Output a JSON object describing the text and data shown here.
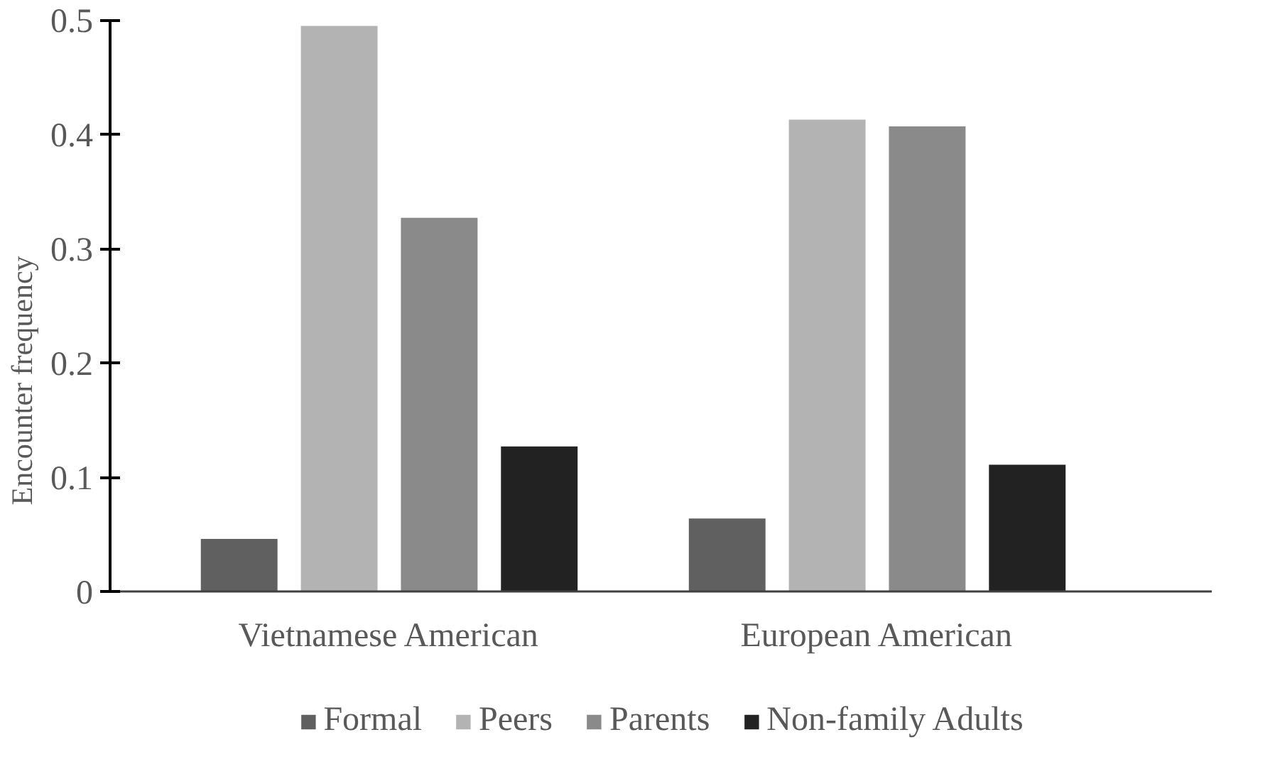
{
  "chart_data": {
    "type": "bar",
    "ylabel": "Encounter frequency",
    "categories": [
      "Vietnamese American",
      "European American"
    ],
    "series": [
      {
        "name": "Formal",
        "color": "#606060",
        "values": [
          0.047,
          0.065
        ]
      },
      {
        "name": "Peers",
        "color": "#b3b3b3",
        "values": [
          0.496,
          0.414
        ]
      },
      {
        "name": "Parents",
        "color": "#8a8a8a",
        "values": [
          0.328,
          0.408
        ]
      },
      {
        "name": "Non-family Adults",
        "color": "#222222",
        "values": [
          0.128,
          0.112
        ]
      }
    ],
    "ylim": [
      0,
      0.5
    ],
    "yticks": [
      0,
      0.1,
      0.2,
      0.3,
      0.4,
      0.5
    ],
    "grid": false,
    "legend": "bottom"
  }
}
